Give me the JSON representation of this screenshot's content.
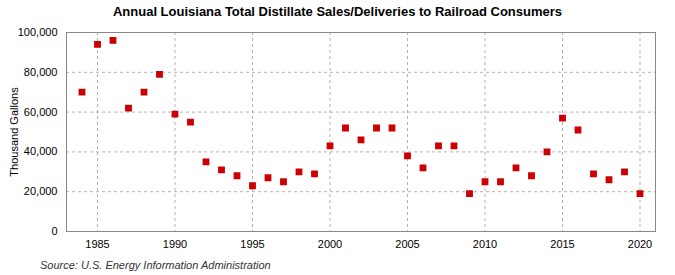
{
  "chart_data": {
    "type": "scatter",
    "title": "Annual Louisiana Total Distillate Sales/Deliveries to Railroad Consumers",
    "ylabel": "Thousand Gallons",
    "annotations": [
      "Source: U.S. Energy Information Administration"
    ],
    "x": [
      1984,
      1985,
      1986,
      1987,
      1988,
      1989,
      1990,
      1991,
      1992,
      1993,
      1994,
      1995,
      1996,
      1997,
      1998,
      1999,
      2000,
      2001,
      2002,
      2003,
      2004,
      2005,
      2006,
      2007,
      2008,
      2009,
      2010,
      2011,
      2012,
      2013,
      2014,
      2015,
      2016,
      2017,
      2018,
      2019,
      2020
    ],
    "values": [
      70000,
      94000,
      96000,
      62000,
      70000,
      79000,
      59000,
      55000,
      35000,
      31000,
      28000,
      23000,
      27000,
      25000,
      30000,
      29000,
      43000,
      52000,
      46000,
      52000,
      52000,
      38000,
      32000,
      43000,
      43000,
      19000,
      25000,
      25000,
      32000,
      28000,
      40000,
      57000,
      51000,
      29000,
      26000,
      30000,
      19000
    ],
    "color": "#cc0000",
    "marker": "square",
    "xlim": [
      1983,
      2021
    ],
    "xticks": [
      1985,
      1990,
      1995,
      2000,
      2005,
      2010,
      2015,
      2020
    ],
    "ylim": [
      0,
      100000
    ],
    "yticks": [
      0,
      {
        "value": 20000,
        "label": "20,000"
      },
      {
        "value": 40000,
        "label": "40,000"
      },
      {
        "value": 60000,
        "label": "60,000"
      },
      {
        "value": 80000,
        "label": "80,000"
      },
      {
        "value": 100000,
        "label": "100,000"
      }
    ],
    "grid": true
  }
}
